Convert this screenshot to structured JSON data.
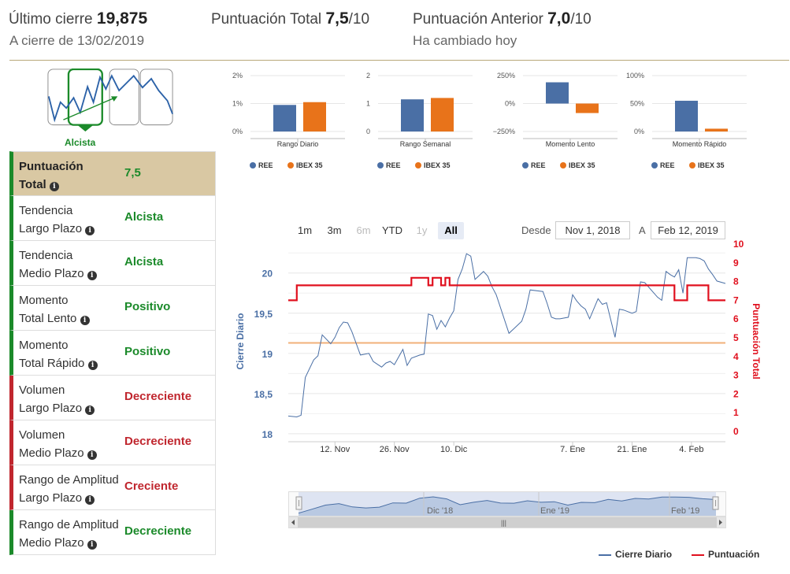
{
  "header": {
    "last_close_label": "Último cierre",
    "last_close_value": "19,875",
    "close_date": "A cierre de 13/02/2019",
    "total_score_label": "Puntuación Total",
    "total_score_value": "7,5",
    "total_score_max": "/10",
    "prev_score_label": "Puntuación Anterior",
    "prev_score_value": "7,0",
    "prev_score_max": "/10",
    "changed_text": "Ha cambiado hoy"
  },
  "trend_widget": {
    "label": "Alcista",
    "selected_panel": 1,
    "panels": 4
  },
  "table": {
    "rows": [
      {
        "label_1": "Puntuación",
        "label_2": "Total",
        "value": "7,5",
        "tone": "green",
        "head": true
      },
      {
        "label_1": "Tendencia",
        "label_2": "Largo Plazo",
        "value": "Alcista",
        "tone": "green"
      },
      {
        "label_1": "Tendencia",
        "label_2": "Medio Plazo",
        "value": "Alcista",
        "tone": "green"
      },
      {
        "label_1": "Momento",
        "label_2": "Total Lento",
        "value": "Positivo",
        "tone": "green"
      },
      {
        "label_1": "Momento",
        "label_2": "Total Rápido",
        "value": "Positivo",
        "tone": "green"
      },
      {
        "label_1": "Volumen",
        "label_2": "Largo Plazo",
        "value": "Decreciente",
        "tone": "red"
      },
      {
        "label_1": "Volumen",
        "label_2": "Medio Plazo",
        "value": "Decreciente",
        "tone": "red"
      },
      {
        "label_1": "Rango de Amplitud",
        "label_2": "Largo Plazo",
        "value": "Creciente",
        "tone": "red"
      },
      {
        "label_1": "Rango de Amplitud",
        "label_2": "Medio Plazo",
        "value": "Decreciente",
        "tone": "green"
      }
    ]
  },
  "range_selector": {
    "buttons": [
      {
        "label": "1m",
        "state": "normal"
      },
      {
        "label": "3m",
        "state": "normal"
      },
      {
        "label": "6m",
        "state": "disabled"
      },
      {
        "label": "YTD",
        "state": "normal"
      },
      {
        "label": "1y",
        "state": "disabled"
      },
      {
        "label": "All",
        "state": "selected"
      }
    ],
    "from_label": "Desde",
    "from_value": "Nov 1, 2018",
    "to_label": "A",
    "to_value": "Feb 12, 2019"
  },
  "legend": {
    "close_label": "Cierre Diario",
    "score_label": "Puntuación"
  },
  "colors": {
    "ree": "#4a6fa5",
    "ibex": "#e8731a",
    "close_line": "#4a6fa5",
    "score_line": "#e0101e",
    "ref_line": "#f2b07a",
    "green": "#1b8a2a",
    "red": "#c0262e"
  },
  "chart_data": [
    {
      "type": "bar",
      "title": "Rango Diario",
      "categories": [
        "REE",
        "IBEX 35"
      ],
      "values": [
        0.95,
        1.05
      ],
      "ylim": [
        0,
        2
      ],
      "yticks": [
        "2%",
        "1%",
        "0%"
      ],
      "ytick_values": [
        2,
        1,
        0
      ]
    },
    {
      "type": "bar",
      "title": "Rango Semanal",
      "categories": [
        "REE",
        "IBEX 35"
      ],
      "values": [
        1.15,
        1.2
      ],
      "ylim": [
        0,
        2
      ],
      "yticks": [
        "2",
        "1",
        "0"
      ],
      "ytick_values": [
        2,
        1,
        0
      ]
    },
    {
      "type": "bar",
      "title": "Momento Lento",
      "categories": [
        "REE",
        "IBEX 35"
      ],
      "values": [
        190,
        -85
      ],
      "ylim": [
        -250,
        250
      ],
      "yticks": [
        "250%",
        "0%",
        "−250%"
      ],
      "ytick_values": [
        250,
        0,
        -250
      ]
    },
    {
      "type": "bar",
      "title": "Momento Rápido",
      "categories": [
        "REE",
        "IBEX 35"
      ],
      "values": [
        55,
        5
      ],
      "ylim": [
        0,
        100
      ],
      "yticks": [
        "100%",
        "50%",
        "0%"
      ],
      "ytick_values": [
        100,
        50,
        0
      ]
    },
    {
      "type": "line",
      "title": "",
      "ylabel": "Cierre Diario",
      "y2label": "Puntuación Total",
      "ylim": [
        17.95,
        20.35
      ],
      "y2lim": [
        0,
        10
      ],
      "yticks": [
        "20",
        "19,5",
        "19",
        "18,5",
        "18"
      ],
      "ytick_values": [
        20,
        19.5,
        19,
        18.5,
        18
      ],
      "y2ticks": [
        "10",
        "9",
        "8",
        "7",
        "6",
        "5",
        "4",
        "3",
        "2",
        "1",
        "0"
      ],
      "xlim": [
        0,
        103
      ],
      "xticks": [
        "12. Nov",
        "26. Nov",
        "10. Dic",
        "7. Ene",
        "21. Ene",
        "4. Feb"
      ],
      "xtick_values": [
        11,
        25,
        39,
        67,
        81,
        95
      ],
      "reference_value": 19.13,
      "series": [
        {
          "name": "Cierre Diario",
          "x": [
            0,
            2,
            3,
            4,
            6,
            7,
            8,
            10,
            11,
            12,
            13,
            14,
            15,
            17,
            19,
            20,
            22,
            23,
            24,
            25,
            27,
            28,
            29,
            31,
            32,
            33,
            34,
            35,
            36,
            37,
            38,
            39,
            40,
            41,
            42,
            43,
            44,
            46,
            47,
            48,
            49,
            52,
            53,
            54,
            55,
            56,
            57,
            60,
            61,
            62,
            63,
            64,
            66,
            67,
            68,
            69,
            70,
            71,
            73,
            74,
            75,
            77,
            78,
            79,
            81,
            82,
            83,
            84,
            87,
            88,
            89,
            90,
            91,
            92,
            93,
            94,
            95,
            96,
            97,
            98,
            99,
            100,
            101,
            103
          ],
          "values": [
            18.22,
            18.21,
            18.23,
            18.7,
            18.92,
            18.97,
            19.23,
            19.12,
            19.2,
            19.32,
            19.39,
            19.38,
            19.27,
            18.98,
            19.0,
            18.9,
            18.83,
            18.88,
            18.9,
            18.86,
            19.05,
            18.85,
            18.94,
            18.98,
            18.99,
            19.49,
            19.47,
            19.3,
            19.41,
            19.33,
            19.44,
            19.53,
            19.92,
            20.05,
            20.24,
            20.21,
            19.92,
            20.02,
            19.96,
            19.83,
            19.73,
            19.25,
            19.3,
            19.35,
            19.4,
            19.55,
            19.79,
            19.77,
            19.62,
            19.45,
            19.43,
            19.43,
            19.45,
            19.73,
            19.65,
            19.59,
            19.55,
            19.43,
            19.68,
            19.61,
            19.63,
            19.2,
            19.55,
            19.54,
            19.5,
            19.52,
            19.89,
            19.88,
            19.7,
            19.66,
            20.02,
            19.98,
            19.95,
            20.04,
            19.75,
            20.19,
            20.19,
            20.19,
            20.18,
            20.15,
            20.05,
            19.98,
            19.9,
            19.87
          ]
        },
        {
          "name": "Puntuación",
          "x": [
            0,
            2,
            2,
            29,
            29,
            33,
            33,
            34,
            34,
            36,
            36,
            37,
            37,
            38,
            38,
            91,
            91,
            94,
            94,
            99,
            99,
            103
          ],
          "values": [
            7,
            7,
            7.8,
            7.8,
            8.2,
            8.2,
            7.8,
            7.8,
            8.2,
            8.2,
            7.8,
            7.8,
            8.2,
            8.2,
            7.8,
            7.8,
            7,
            7,
            7.8,
            7.8,
            7,
            7
          ]
        }
      ]
    }
  ],
  "navigator": {
    "labels": [
      "Dic '18",
      "Ene '19",
      "Feb '19"
    ],
    "values": [
      18.22,
      18.7,
      19.2,
      19.38,
      18.98,
      18.86,
      18.95,
      19.47,
      19.44,
      20.05,
      20.21,
      19.96,
      19.25,
      19.55,
      19.77,
      19.45,
      19.43,
      19.73,
      19.55,
      19.61,
      19.2,
      19.54,
      19.5,
      19.89,
      19.7,
      20.02,
      19.95,
      20.19,
      20.19,
      20.15,
      19.98,
      19.87
    ]
  }
}
